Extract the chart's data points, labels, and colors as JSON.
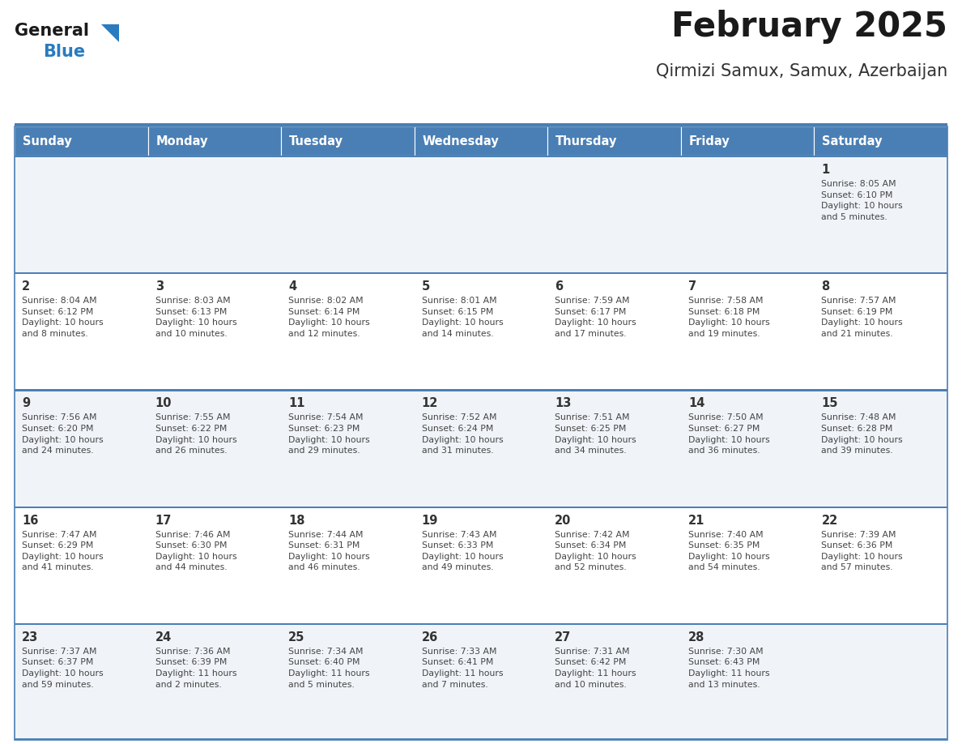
{
  "title": "February 2025",
  "subtitle": "Qirmizi Samux, Samux, Azerbaijan",
  "days_of_week": [
    "Sunday",
    "Monday",
    "Tuesday",
    "Wednesday",
    "Thursday",
    "Friday",
    "Saturday"
  ],
  "header_bg": "#4a7fb5",
  "header_text_color": "#ffffff",
  "row_bg_even": "#f0f4f8",
  "row_bg_odd": "#ffffff",
  "cell_text_color": "#444444",
  "day_num_color": "#333333",
  "border_color": "#4a7fb5",
  "title_color": "#1a1a1a",
  "subtitle_color": "#333333",
  "logo_general_color": "#1a1a1a",
  "logo_blue_color": "#2a7bbf",
  "calendar_data": [
    [
      {
        "day": null,
        "info": null
      },
      {
        "day": null,
        "info": null
      },
      {
        "day": null,
        "info": null
      },
      {
        "day": null,
        "info": null
      },
      {
        "day": null,
        "info": null
      },
      {
        "day": null,
        "info": null
      },
      {
        "day": 1,
        "info": "Sunrise: 8:05 AM\nSunset: 6:10 PM\nDaylight: 10 hours\nand 5 minutes."
      }
    ],
    [
      {
        "day": 2,
        "info": "Sunrise: 8:04 AM\nSunset: 6:12 PM\nDaylight: 10 hours\nand 8 minutes."
      },
      {
        "day": 3,
        "info": "Sunrise: 8:03 AM\nSunset: 6:13 PM\nDaylight: 10 hours\nand 10 minutes."
      },
      {
        "day": 4,
        "info": "Sunrise: 8:02 AM\nSunset: 6:14 PM\nDaylight: 10 hours\nand 12 minutes."
      },
      {
        "day": 5,
        "info": "Sunrise: 8:01 AM\nSunset: 6:15 PM\nDaylight: 10 hours\nand 14 minutes."
      },
      {
        "day": 6,
        "info": "Sunrise: 7:59 AM\nSunset: 6:17 PM\nDaylight: 10 hours\nand 17 minutes."
      },
      {
        "day": 7,
        "info": "Sunrise: 7:58 AM\nSunset: 6:18 PM\nDaylight: 10 hours\nand 19 minutes."
      },
      {
        "day": 8,
        "info": "Sunrise: 7:57 AM\nSunset: 6:19 PM\nDaylight: 10 hours\nand 21 minutes."
      }
    ],
    [
      {
        "day": 9,
        "info": "Sunrise: 7:56 AM\nSunset: 6:20 PM\nDaylight: 10 hours\nand 24 minutes."
      },
      {
        "day": 10,
        "info": "Sunrise: 7:55 AM\nSunset: 6:22 PM\nDaylight: 10 hours\nand 26 minutes."
      },
      {
        "day": 11,
        "info": "Sunrise: 7:54 AM\nSunset: 6:23 PM\nDaylight: 10 hours\nand 29 minutes."
      },
      {
        "day": 12,
        "info": "Sunrise: 7:52 AM\nSunset: 6:24 PM\nDaylight: 10 hours\nand 31 minutes."
      },
      {
        "day": 13,
        "info": "Sunrise: 7:51 AM\nSunset: 6:25 PM\nDaylight: 10 hours\nand 34 minutes."
      },
      {
        "day": 14,
        "info": "Sunrise: 7:50 AM\nSunset: 6:27 PM\nDaylight: 10 hours\nand 36 minutes."
      },
      {
        "day": 15,
        "info": "Sunrise: 7:48 AM\nSunset: 6:28 PM\nDaylight: 10 hours\nand 39 minutes."
      }
    ],
    [
      {
        "day": 16,
        "info": "Sunrise: 7:47 AM\nSunset: 6:29 PM\nDaylight: 10 hours\nand 41 minutes."
      },
      {
        "day": 17,
        "info": "Sunrise: 7:46 AM\nSunset: 6:30 PM\nDaylight: 10 hours\nand 44 minutes."
      },
      {
        "day": 18,
        "info": "Sunrise: 7:44 AM\nSunset: 6:31 PM\nDaylight: 10 hours\nand 46 minutes."
      },
      {
        "day": 19,
        "info": "Sunrise: 7:43 AM\nSunset: 6:33 PM\nDaylight: 10 hours\nand 49 minutes."
      },
      {
        "day": 20,
        "info": "Sunrise: 7:42 AM\nSunset: 6:34 PM\nDaylight: 10 hours\nand 52 minutes."
      },
      {
        "day": 21,
        "info": "Sunrise: 7:40 AM\nSunset: 6:35 PM\nDaylight: 10 hours\nand 54 minutes."
      },
      {
        "day": 22,
        "info": "Sunrise: 7:39 AM\nSunset: 6:36 PM\nDaylight: 10 hours\nand 57 minutes."
      }
    ],
    [
      {
        "day": 23,
        "info": "Sunrise: 7:37 AM\nSunset: 6:37 PM\nDaylight: 10 hours\nand 59 minutes."
      },
      {
        "day": 24,
        "info": "Sunrise: 7:36 AM\nSunset: 6:39 PM\nDaylight: 11 hours\nand 2 minutes."
      },
      {
        "day": 25,
        "info": "Sunrise: 7:34 AM\nSunset: 6:40 PM\nDaylight: 11 hours\nand 5 minutes."
      },
      {
        "day": 26,
        "info": "Sunrise: 7:33 AM\nSunset: 6:41 PM\nDaylight: 11 hours\nand 7 minutes."
      },
      {
        "day": 27,
        "info": "Sunrise: 7:31 AM\nSunset: 6:42 PM\nDaylight: 11 hours\nand 10 minutes."
      },
      {
        "day": 28,
        "info": "Sunrise: 7:30 AM\nSunset: 6:43 PM\nDaylight: 11 hours\nand 13 minutes."
      },
      {
        "day": null,
        "info": null
      }
    ]
  ]
}
